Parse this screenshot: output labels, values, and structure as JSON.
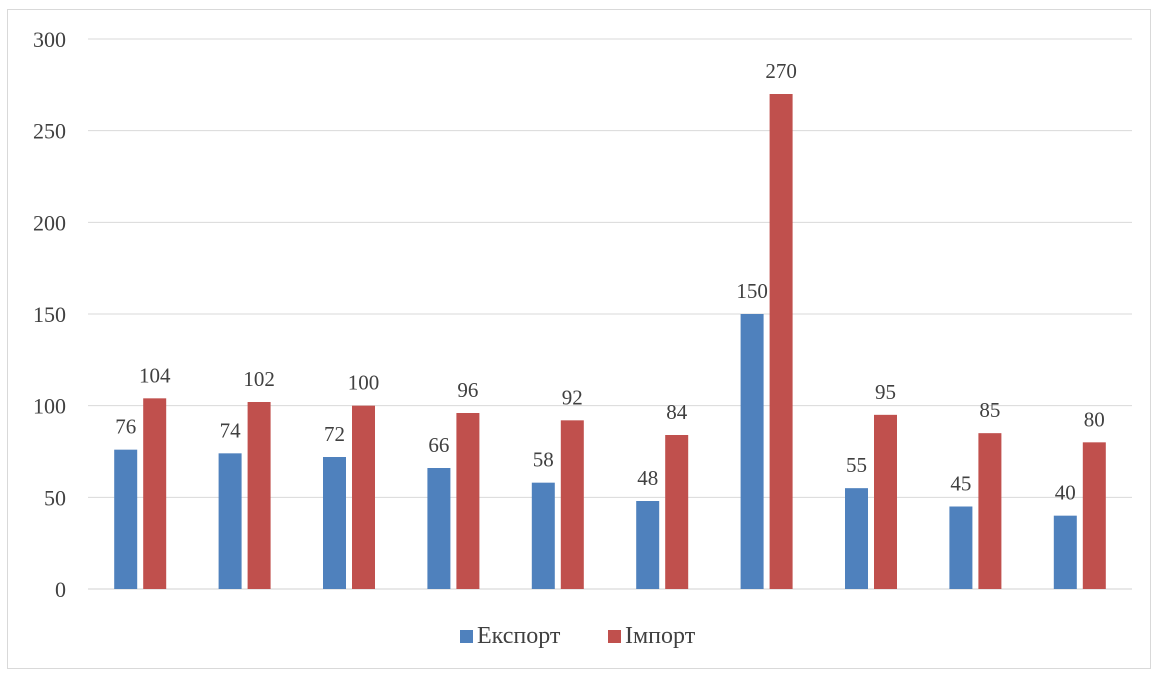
{
  "chart_data": {
    "type": "bar",
    "title": "",
    "xlabel": "",
    "ylabel": "",
    "ylim": [
      0,
      300
    ],
    "y_ticks": [
      0,
      50,
      100,
      150,
      200,
      250,
      300
    ],
    "categories": [
      "",
      "",
      "",
      "",
      "",
      "",
      "",
      "",
      "",
      ""
    ],
    "grid": true,
    "legend_position": "bottom",
    "series": [
      {
        "name": "Експорт",
        "color": "#4f81bd",
        "values": [
          76,
          74,
          72,
          66,
          58,
          48,
          150,
          55,
          45,
          40
        ]
      },
      {
        "name": "Імпорт",
        "color": "#c0504d",
        "values": [
          104,
          102,
          100,
          96,
          92,
          84,
          270,
          95,
          85,
          80
        ]
      }
    ]
  }
}
